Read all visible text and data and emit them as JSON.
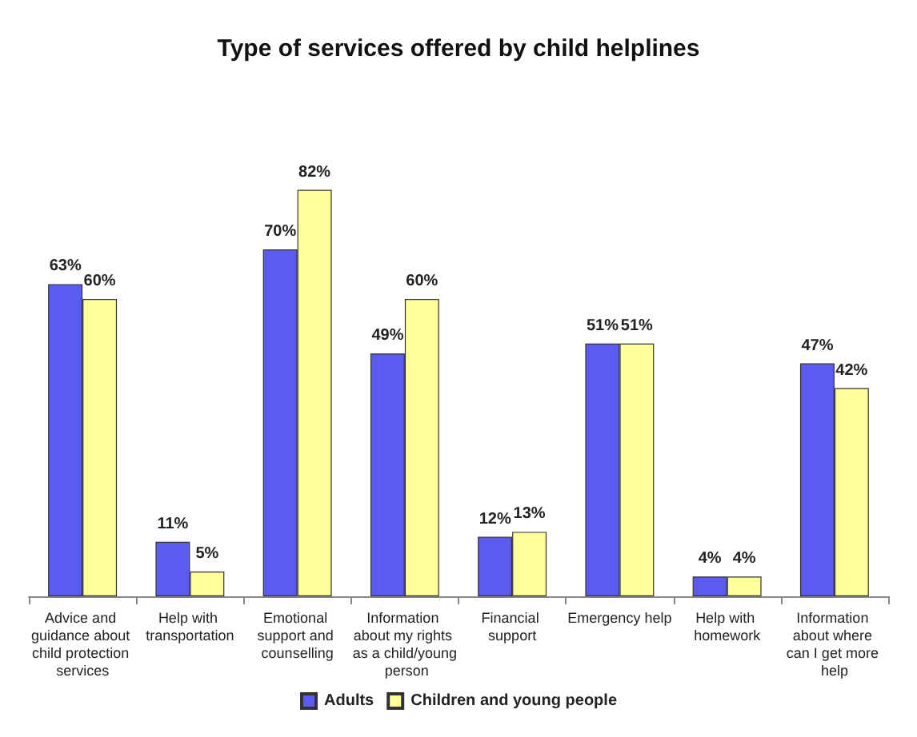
{
  "chart_data": {
    "type": "bar",
    "title": "Type of services offered by child helplines",
    "categories": [
      "Advice and guidance about child protection services",
      "Help with transportation",
      "Emotional support and counselling",
      "Information about my rights as a child/young person",
      "Financial support",
      "Emergency help",
      "Help with homework",
      "Information about where can I get more help"
    ],
    "series": [
      {
        "name": "Adults",
        "color": "#5b5bf0",
        "values": [
          63,
          11,
          70,
          49,
          12,
          51,
          4,
          47
        ],
        "value_labels": [
          "63%",
          "11%",
          "70%",
          "49%",
          "12%",
          "51%",
          "4%",
          "47%"
        ]
      },
      {
        "name": "Children and young people",
        "color": "#ffff99",
        "values": [
          60,
          5,
          82,
          60,
          13,
          51,
          4,
          42
        ],
        "value_labels": [
          "60%",
          "5%",
          "82%",
          "60%",
          "13%",
          "51%",
          "4%",
          "42%"
        ]
      }
    ],
    "legend": "bottom"
  }
}
